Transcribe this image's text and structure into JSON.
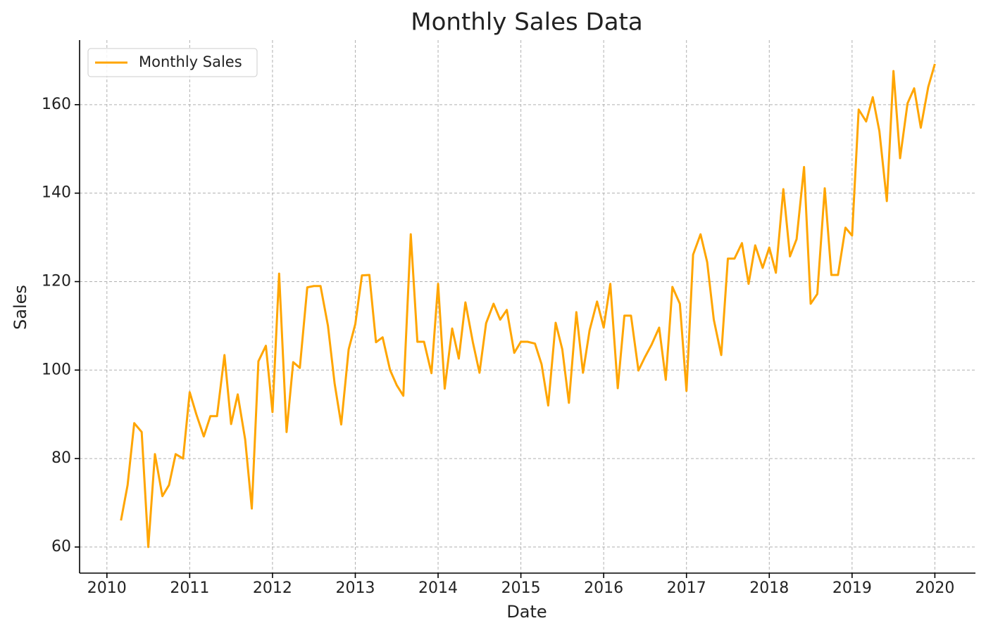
{
  "chart_data": {
    "type": "line",
    "title": "Monthly Sales Data",
    "x_label": "Date",
    "y_label": "Sales",
    "x": [
      2010.17,
      2010.25,
      2010.33,
      2010.42,
      2010.5,
      2010.58,
      2010.67,
      2010.75,
      2010.83,
      2010.92,
      2011,
      2011.08,
      2011.17,
      2011.25,
      2011.33,
      2011.42,
      2011.5,
      2011.58,
      2011.67,
      2011.75,
      2011.83,
      2011.92,
      2012,
      2012.08,
      2012.17,
      2012.25,
      2012.33,
      2012.42,
      2012.5,
      2012.58,
      2012.67,
      2012.75,
      2012.83,
      2012.92,
      2013,
      2013.08,
      2013.17,
      2013.25,
      2013.33,
      2013.42,
      2013.5,
      2013.58,
      2013.67,
      2013.75,
      2013.83,
      2013.92,
      2014,
      2014.08,
      2014.17,
      2014.25,
      2014.33,
      2014.42,
      2014.5,
      2014.58,
      2014.67,
      2014.75,
      2014.83,
      2014.92,
      2015,
      2015.08,
      2015.17,
      2015.25,
      2015.33,
      2015.42,
      2015.5,
      2015.58,
      2015.67,
      2015.75,
      2015.83,
      2015.92,
      2016,
      2016.08,
      2016.17,
      2016.25,
      2016.33,
      2016.42,
      2016.5,
      2016.58,
      2016.67,
      2016.75,
      2016.83,
      2016.92,
      2017,
      2017.08,
      2017.17,
      2017.25,
      2017.33,
      2017.42,
      2017.5,
      2017.58,
      2017.67,
      2017.75,
      2017.83,
      2017.92,
      2018,
      2018.08,
      2018.17,
      2018.25,
      2018.33,
      2018.42,
      2018.5,
      2018.58,
      2018.67,
      2018.75,
      2018.83,
      2018.92,
      2019,
      2019.08,
      2019.17,
      2019.25,
      2019.33,
      2019.42,
      2019.5,
      2019.58,
      2019.67,
      2019.75,
      2019.83,
      2019.92,
      2020
    ],
    "series": [
      {
        "name": "Monthly Sales",
        "color": "#ffa500",
        "values": [
          66,
          74,
          88,
          86,
          60,
          81,
          71.5,
          74,
          81,
          80,
          95,
          90,
          85,
          89.6,
          89.6,
          103.4,
          87.8,
          94.5,
          84.3,
          68.7,
          102,
          105.5,
          90.5,
          121.8,
          86,
          101.8,
          100.5,
          118.7,
          119,
          119,
          110,
          97,
          87.7,
          104.7,
          110.4,
          121.4,
          121.5,
          106.3,
          107.4,
          100,
          96.6,
          94.2,
          130.7,
          106.4,
          106.4,
          99.3,
          119.5,
          95.8,
          109.4,
          102.6,
          115.3,
          106.3,
          99.4,
          110.6,
          115,
          111.4,
          113.6,
          103.9,
          106.4,
          106.4,
          106,
          101.3,
          92,
          110.7,
          104.7,
          92.6,
          113.1,
          99.4,
          109,
          115.5,
          109.6,
          119.5,
          95.9,
          112.3,
          112.3,
          99.9,
          103,
          105.8,
          109.6,
          97.8,
          118.8,
          115,
          95.3,
          126.1,
          130.7,
          124.4,
          111.4,
          103.4,
          125.2,
          125.2,
          128.7,
          119.5,
          128.2,
          123.1,
          127.7,
          122,
          140.9,
          125.7,
          129.6,
          145.9,
          115,
          117.2,
          141.1,
          121.5,
          121.5,
          132.2,
          130.4,
          158.9,
          156.2,
          161.7,
          154,
          138.2,
          167.6,
          147.9,
          160.3,
          163.7,
          154.8,
          164,
          169.2
        ]
      }
    ],
    "xlim": [
      2009.67,
      2020.49
    ],
    "xticks": [
      2010,
      2011,
      2012,
      2013,
      2014,
      2015,
      2016,
      2017,
      2018,
      2019,
      2020
    ],
    "ylim": [
      54.1,
      174.6
    ],
    "yticks": [
      60,
      80,
      100,
      120,
      140,
      160
    ],
    "grid": true,
    "legend": "upper left"
  }
}
